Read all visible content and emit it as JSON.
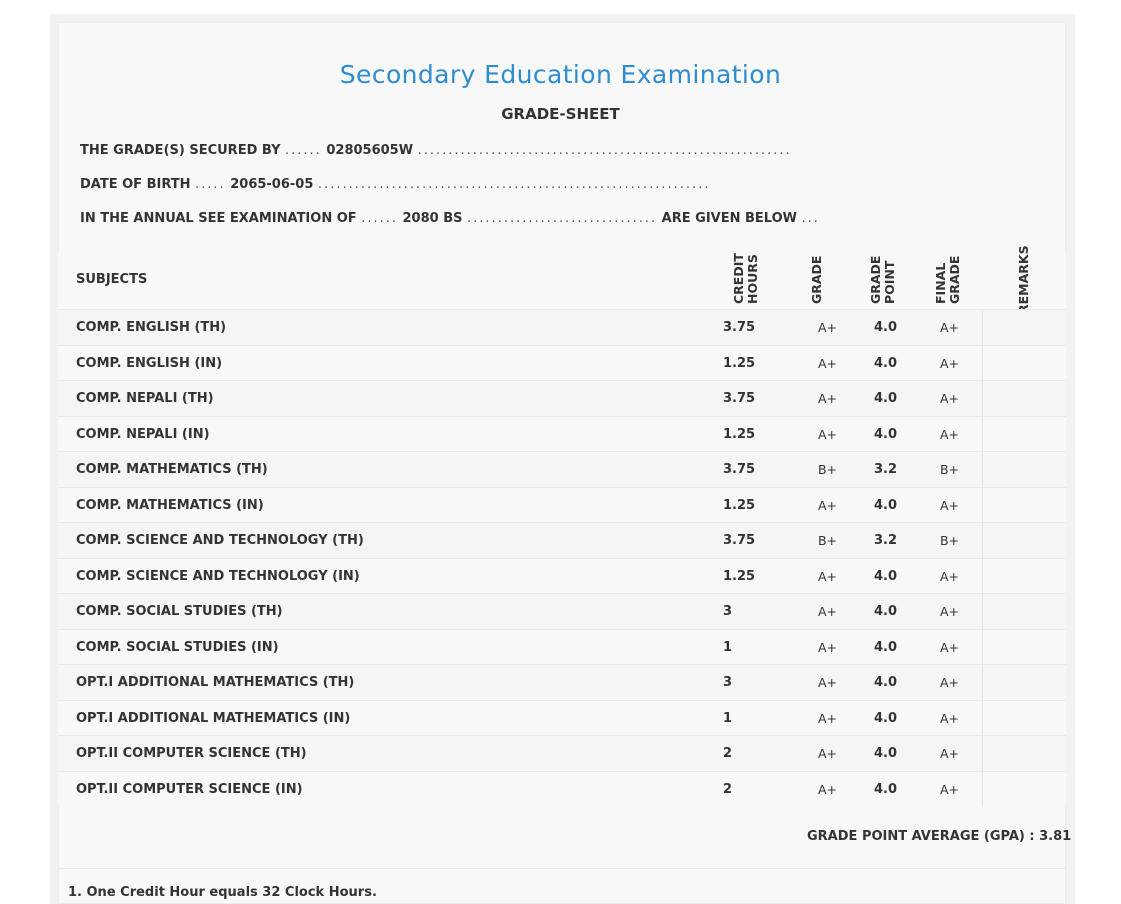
{
  "header": {
    "title": "Secondary Education Examination",
    "subtitle": "GRADE-SHEET"
  },
  "info": {
    "secured_label": "THE GRADE(S) SECURED BY",
    "secured_value": "02805605W",
    "dob_label": "DATE OF BIRTH",
    "dob_value": "2065-06-05",
    "exam_label": "IN THE ANNUAL SEE EXAMINATION OF",
    "exam_value": "2080 BS",
    "exam_suffix": "ARE GIVEN BELOW"
  },
  "table": {
    "headers": {
      "subjects": "SUBJECTS",
      "credit_line1": "CREDIT",
      "credit_line2": "HOURS",
      "grade": "GRADE",
      "point_line1": "GRADE",
      "point_line2": "POINT",
      "final_line1": "FINAL",
      "final_line2": "GRADE",
      "remarks": "REMARKS"
    },
    "rows": [
      {
        "subject": "COMP. ENGLISH (TH)",
        "credit": "3.75",
        "grade": "A+",
        "point": "4.0",
        "final": "A+"
      },
      {
        "subject": "COMP. ENGLISH (IN)",
        "credit": "1.25",
        "grade": "A+",
        "point": "4.0",
        "final": "A+"
      },
      {
        "subject": "COMP. NEPALI (TH)",
        "credit": "3.75",
        "grade": "A+",
        "point": "4.0",
        "final": "A+"
      },
      {
        "subject": "COMP. NEPALI (IN)",
        "credit": "1.25",
        "grade": "A+",
        "point": "4.0",
        "final": "A+"
      },
      {
        "subject": "COMP. MATHEMATICS (TH)",
        "credit": "3.75",
        "grade": "B+",
        "point": "3.2",
        "final": "B+"
      },
      {
        "subject": "COMP. MATHEMATICS (IN)",
        "credit": "1.25",
        "grade": "A+",
        "point": "4.0",
        "final": "A+"
      },
      {
        "subject": "COMP. SCIENCE AND TECHNOLOGY (TH)",
        "credit": "3.75",
        "grade": "B+",
        "point": "3.2",
        "final": "B+"
      },
      {
        "subject": "COMP. SCIENCE AND TECHNOLOGY (IN)",
        "credit": "1.25",
        "grade": "A+",
        "point": "4.0",
        "final": "A+"
      },
      {
        "subject": "COMP. SOCIAL STUDIES (TH)",
        "credit": "3",
        "grade": "A+",
        "point": "4.0",
        "final": "A+"
      },
      {
        "subject": "COMP. SOCIAL STUDIES (IN)",
        "credit": "1",
        "grade": "A+",
        "point": "4.0",
        "final": "A+"
      },
      {
        "subject": "OPT.I ADDITIONAL MATHEMATICS (TH)",
        "credit": "3",
        "grade": "A+",
        "point": "4.0",
        "final": "A+"
      },
      {
        "subject": "OPT.I ADDITIONAL MATHEMATICS (IN)",
        "credit": "1",
        "grade": "A+",
        "point": "4.0",
        "final": "A+"
      },
      {
        "subject": "OPT.II COMPUTER SCIENCE (TH)",
        "credit": "2",
        "grade": "A+",
        "point": "4.0",
        "final": "A+"
      },
      {
        "subject": "OPT.II COMPUTER SCIENCE (IN)",
        "credit": "2",
        "grade": "A+",
        "point": "4.0",
        "final": "A+"
      }
    ]
  },
  "gpa": {
    "label": "GRADE POINT AVERAGE (GPA) :",
    "value": "3.81"
  },
  "footnote": "1. One Credit Hour equals 32 Clock Hours.",
  "colors": {
    "title": "#2e8dd0",
    "text": "#333333",
    "background": "#f8f8f8"
  }
}
